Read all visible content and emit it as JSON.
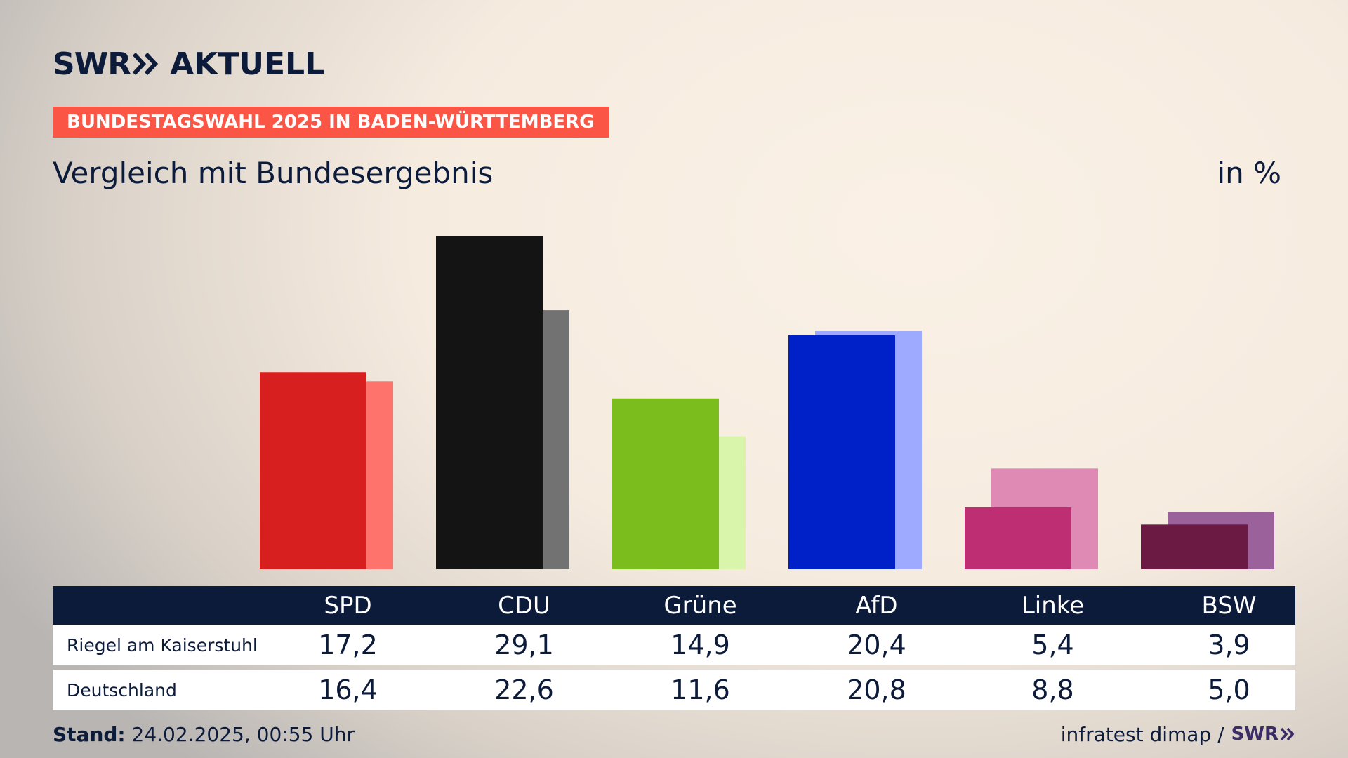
{
  "brand": {
    "swr": "SWR",
    "name": "AKTUELL"
  },
  "tag": "BUNDESTAGSWAHL 2025 IN BADEN-WÜRTTEMBERG",
  "subtitle": "Vergleich mit Bundesergebnis",
  "unit": "in %",
  "table": {
    "rows": [
      {
        "label": "Riegel am Kaiserstuhl"
      },
      {
        "label": "Deutschland"
      }
    ]
  },
  "footer": {
    "stand_label": "Stand:",
    "stand_value": "24.02.2025, 00:55 Uhr",
    "source": "infratest dimap /",
    "source_brand": "SWR"
  },
  "chart_data": {
    "type": "bar",
    "categories": [
      "SPD",
      "CDU",
      "Grüne",
      "AfD",
      "Linke",
      "BSW"
    ],
    "series": [
      {
        "name": "Riegel am Kaiserstuhl",
        "values": [
          17.2,
          29.1,
          14.9,
          20.4,
          5.4,
          3.9
        ],
        "colors": [
          "#d71f1f",
          "#141414",
          "#7bbd1d",
          "#0021c8",
          "#bd2f72",
          "#6b1a43"
        ]
      },
      {
        "name": "Deutschland",
        "values": [
          16.4,
          22.6,
          11.6,
          20.8,
          8.8,
          5.0
        ],
        "colors": [
          "#ff736d",
          "#727272",
          "#d8f5ab",
          "#9eaaff",
          "#df89b5",
          "#9a619b"
        ]
      }
    ],
    "ylim": [
      0,
      29.1
    ],
    "grid": false,
    "legend": "table-below"
  }
}
